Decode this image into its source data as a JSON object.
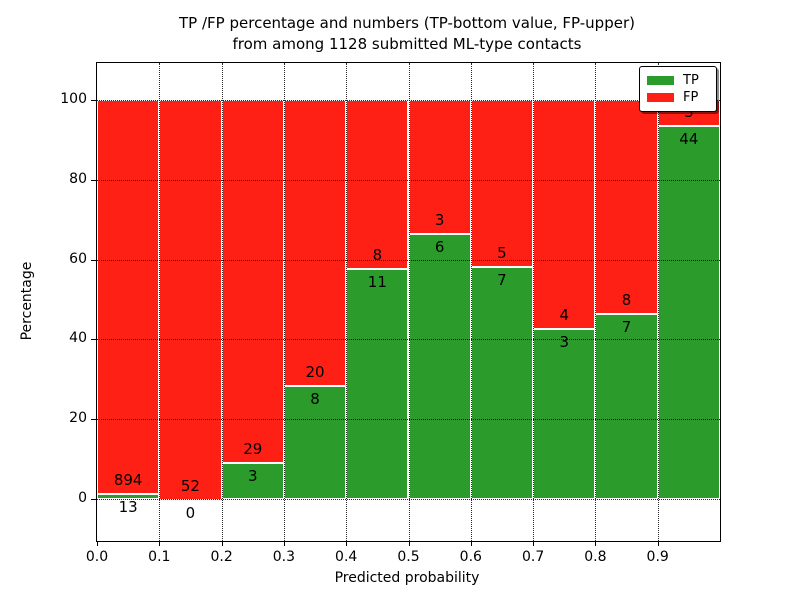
{
  "figure": {
    "title_line1": "TP /FP percentage and numbers (TP-bottom value, FP-upper)",
    "title_line2": "from among 1128 submitted ML-type contacts"
  },
  "chart_data": {
    "type": "bar",
    "stacked": true,
    "title": "TP /FP percentage and numbers (TP-bottom value, FP-upper) from among 1128 submitted ML-type contacts",
    "xlabel": "Predicted probability",
    "ylabel": "Percentage",
    "total_contacts": 1128,
    "x_tick_labels": [
      "0.0",
      "0.1",
      "0.2",
      "0.3",
      "0.4",
      "0.5",
      "0.6",
      "0.7",
      "0.8",
      "0.9"
    ],
    "y_tick_labels": [
      "0",
      "20",
      "40",
      "60",
      "80",
      "100"
    ],
    "y_tick_values": [
      0,
      20,
      40,
      60,
      80,
      100
    ],
    "xlim": [
      0.0,
      1.0
    ],
    "ylim": [
      -10.5,
      109.5
    ],
    "grid": "dotted",
    "legend_position": "upper-right",
    "bar_edge_color": "#ffffff",
    "series": [
      {
        "name": "TP",
        "color": "#2b9c2b"
      },
      {
        "name": "FP",
        "color": "#ff2015"
      }
    ],
    "bins": [
      {
        "x_range": [
          0.0,
          0.1
        ],
        "tp": 13,
        "fp": 894
      },
      {
        "x_range": [
          0.1,
          0.2
        ],
        "tp": 0,
        "fp": 52
      },
      {
        "x_range": [
          0.2,
          0.3
        ],
        "tp": 3,
        "fp": 29
      },
      {
        "x_range": [
          0.3,
          0.4
        ],
        "tp": 8,
        "fp": 20
      },
      {
        "x_range": [
          0.4,
          0.5
        ],
        "tp": 11,
        "fp": 8
      },
      {
        "x_range": [
          0.5,
          0.6
        ],
        "tp": 6,
        "fp": 3
      },
      {
        "x_range": [
          0.6,
          0.7
        ],
        "tp": 7,
        "fp": 5
      },
      {
        "x_range": [
          0.7,
          0.8
        ],
        "tp": 3,
        "fp": 4
      },
      {
        "x_range": [
          0.8,
          0.9
        ],
        "tp": 7,
        "fp": 8
      },
      {
        "x_range": [
          0.9,
          1.0
        ],
        "tp": 44,
        "fp": 3
      }
    ]
  }
}
